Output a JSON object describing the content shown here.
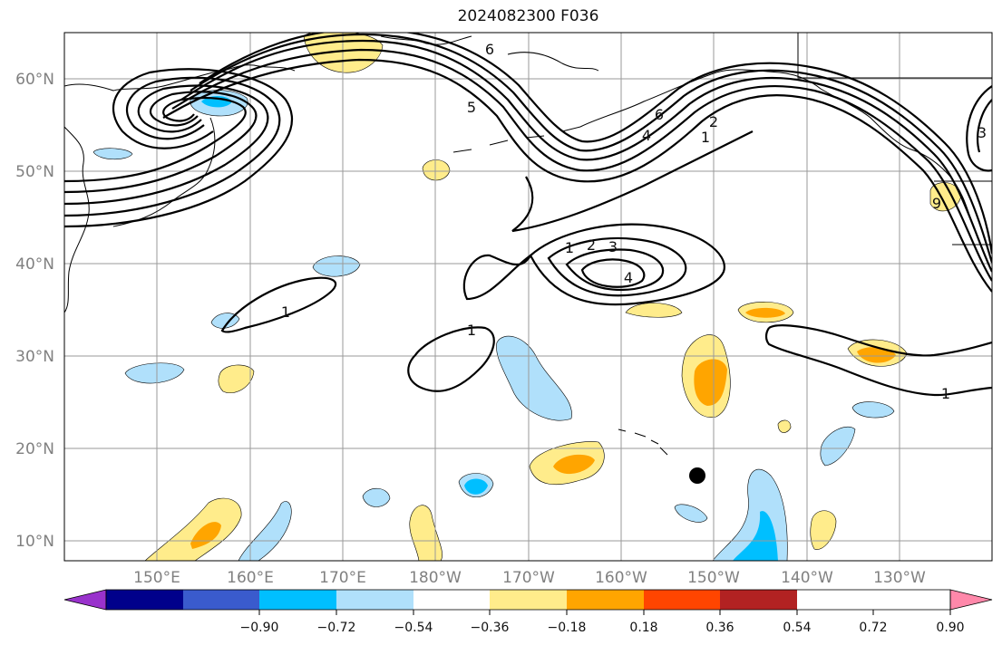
{
  "title": "2024082300 F036",
  "lat_labels": [
    "60°N",
    "50°N",
    "40°N",
    "30°N",
    "20°N",
    "10°N"
  ],
  "lon_labels": [
    "150°E",
    "160°E",
    "170°E",
    "180°W",
    "170°W",
    "160°W",
    "150°W",
    "140°W",
    "130°W"
  ],
  "colorbar": {
    "colors": [
      "#9932cc",
      "#00008b",
      "#3a5bcd",
      "#00bfff",
      "#b0e0fb",
      "#ffffff",
      "#ffec8b",
      "#ffa500",
      "#ff4500",
      "#b22222",
      "#ff88aa"
    ],
    "tick_labels": [
      "−0.90",
      "−0.72",
      "−0.54",
      "−0.36",
      "−0.18",
      "0.18",
      "0.36",
      "0.54",
      "0.72",
      "0.90"
    ]
  },
  "contour_labels": [
    "6",
    "5",
    "6",
    "4",
    "2",
    "1",
    "1",
    "2",
    "3",
    "4",
    "1",
    "1",
    "1",
    "9",
    "3"
  ],
  "marker": "storm-position-dot"
}
